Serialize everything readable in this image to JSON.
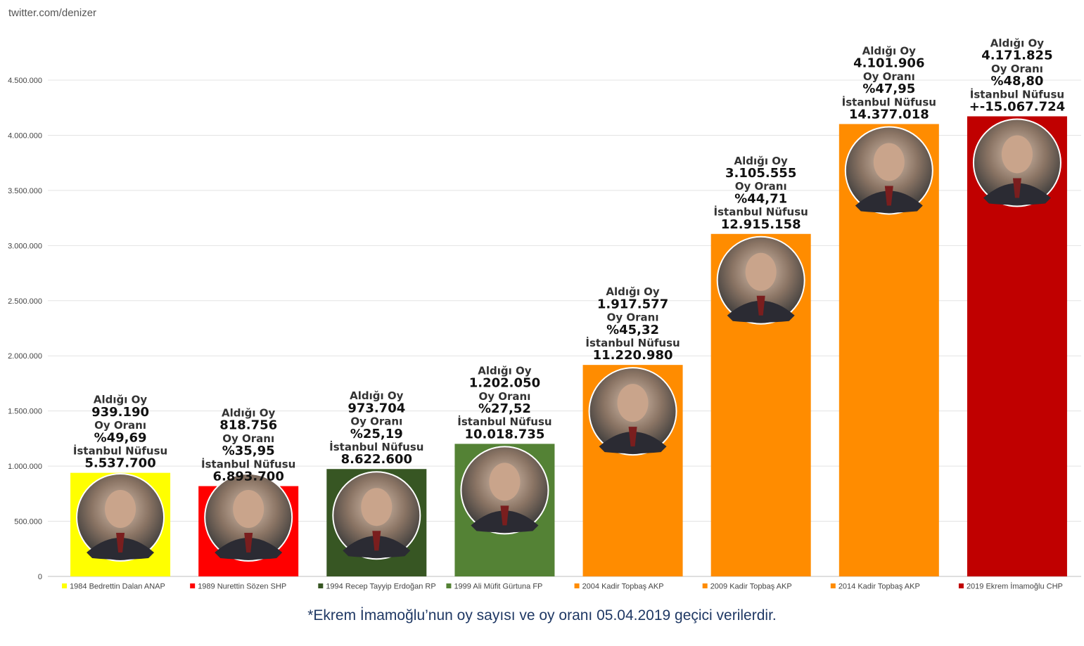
{
  "watermark": "twitter.com/denizer",
  "footnote": "*Ekrem İmamoğlu’nun oy sayısı ve oy oranı 05.04.2019 geçici verilerdir.",
  "chart_data": {
    "type": "bar",
    "ylim": [
      0,
      4500000
    ],
    "yticks": [
      0,
      500000,
      1000000,
      1500000,
      2000000,
      2500000,
      3000000,
      3500000,
      4000000,
      4500000
    ],
    "ytick_labels": [
      "0",
      "500.000",
      "1.000.000",
      "1.500.000",
      "2.000.000",
      "2.500.000",
      "3.000.000",
      "3.500.000",
      "4.000.000",
      "4.500.000"
    ],
    "grid": true,
    "legend_position": "bottom",
    "label_titles": {
      "votes": "Aldığı Oy",
      "rate": "Oy Oranı",
      "population": "İstanbul Nüfusu"
    },
    "bars": [
      {
        "legend": "1984 Bedrettin Dalan ANAP",
        "value": 939190,
        "votes": "939.190",
        "rate": "%49,69",
        "population": "5.537.700",
        "color": "#ffff00",
        "photo": "avatar-dalan"
      },
      {
        "legend": "1989 Nurettin Sözen SHP",
        "value": 818756,
        "votes": "818.756",
        "rate": "%35,95",
        "population": "6.893.700",
        "color": "#ff0000",
        "photo": "avatar-sozen"
      },
      {
        "legend": "1994 Recep Tayyip Erdoğan RP",
        "value": 973704,
        "votes": "973.704",
        "rate": "%25,19",
        "population": "8.622.600",
        "color": "#375623",
        "photo": "avatar-erdogan"
      },
      {
        "legend": "1999 Ali Müfit Gürtuna FP",
        "value": 1202050,
        "votes": "1.202.050",
        "rate": "%27,52",
        "population": "10.018.735",
        "color": "#548235",
        "photo": "avatar-gurtuna"
      },
      {
        "legend": "2004 Kadir Topbaş AKP",
        "value": 1917577,
        "votes": "1.917.577",
        "rate": "%45,32",
        "population": "11.220.980",
        "color": "#ff8c00",
        "photo": "avatar-topbas-2004"
      },
      {
        "legend": "2009 Kadir Topbaş AKP",
        "value": 3105555,
        "votes": "3.105.555",
        "rate": "%44,71",
        "population": "12.915.158",
        "color": "#ff8c00",
        "photo": "avatar-topbas-2009"
      },
      {
        "legend": "2014 Kadir Topbaş AKP",
        "value": 4101906,
        "votes": "4.101.906",
        "rate": "%47,95",
        "population": "14.377.018",
        "color": "#ff8c00",
        "photo": "avatar-topbas-2014"
      },
      {
        "legend": "2019 Ekrem İmamoğlu CHP",
        "value": 4171825,
        "votes": "4.171.825",
        "rate": "%48,80",
        "population": "+-15.067.724",
        "color": "#c00000",
        "photo": "avatar-imamoglu"
      }
    ]
  }
}
